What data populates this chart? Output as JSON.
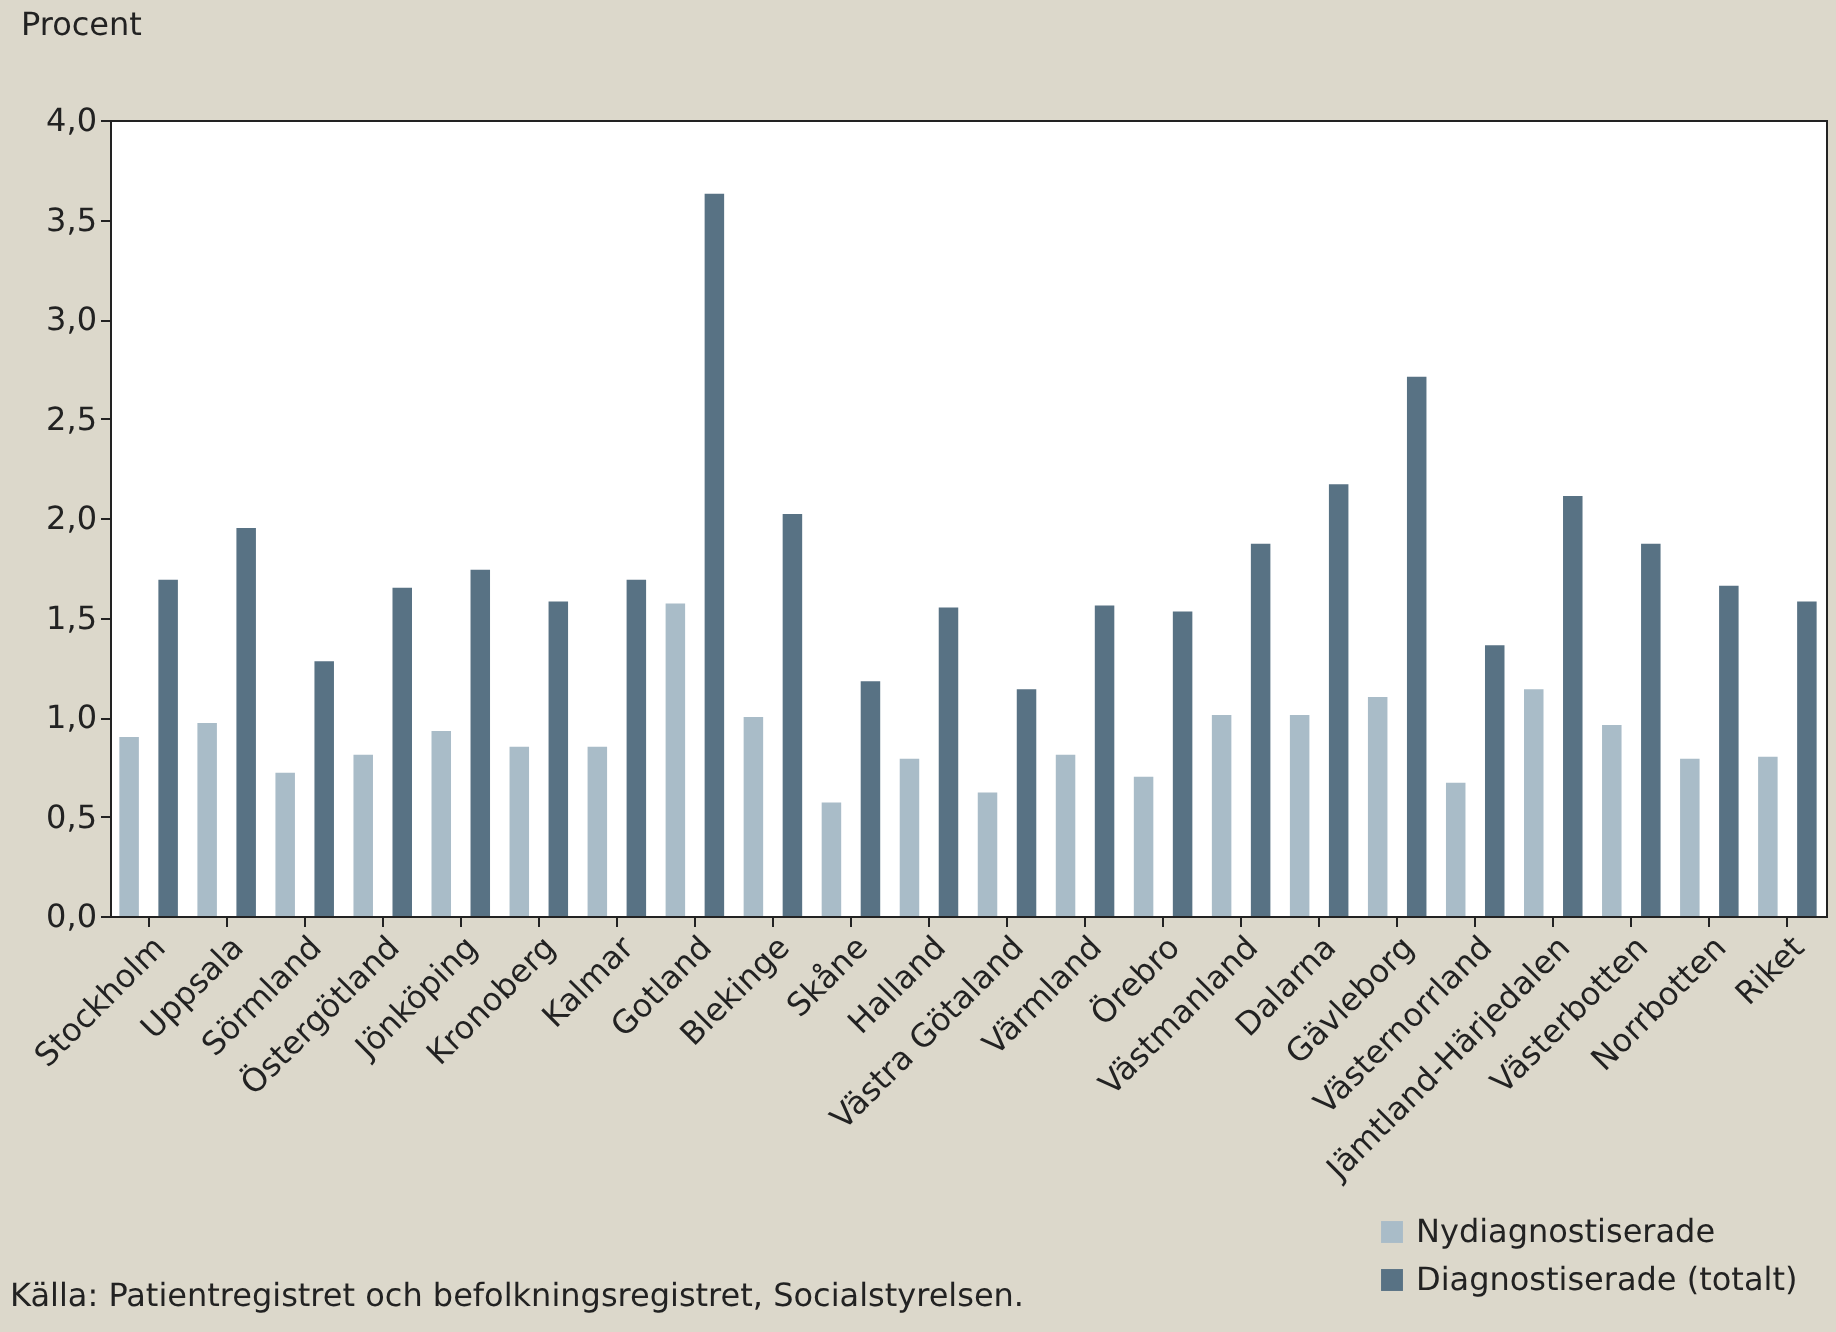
{
  "chart_data": {
    "type": "bar",
    "ylabel": "Procent",
    "categories": [
      "Stockholm",
      "Uppsala",
      "Sörmland",
      "Östergötland",
      "Jönköping",
      "Kronoberg",
      "Kalmar",
      "Gotland",
      "Blekinge",
      "Skåne",
      "Halland",
      "Västra Götaland",
      "Värmland",
      "Örebro",
      "Västmanland",
      "Dalarna",
      "Gävleborg",
      "Västernorrland",
      "Jämtland-Härjedalen",
      "Västerbotten",
      "Norrbotten",
      "Riket"
    ],
    "series": [
      {
        "name": "Nydiagnostiserade",
        "color": "#a9bcc8",
        "values": [
          0.9,
          0.97,
          0.72,
          0.81,
          0.93,
          0.85,
          0.85,
          1.57,
          1.0,
          0.57,
          0.79,
          0.62,
          0.81,
          0.7,
          1.01,
          1.01,
          1.1,
          0.67,
          1.14,
          0.96,
          0.79,
          0.8
        ]
      },
      {
        "name": "Diagnostiserade (totalt)",
        "color": "#587284",
        "values": [
          1.69,
          1.95,
          1.28,
          1.65,
          1.74,
          1.58,
          1.69,
          3.63,
          2.02,
          1.18,
          1.55,
          1.14,
          1.56,
          1.53,
          1.87,
          2.17,
          2.71,
          1.36,
          2.11,
          1.87,
          1.66,
          1.58
        ]
      }
    ],
    "ylim": [
      0,
      4
    ],
    "yticks": [
      {
        "value": 0,
        "label": "0,0"
      },
      {
        "value": 0.5,
        "label": "0,5"
      },
      {
        "value": 1,
        "label": "1,0"
      },
      {
        "value": 1.5,
        "label": "1,5"
      },
      {
        "value": 2,
        "label": "2,0"
      },
      {
        "value": 2.5,
        "label": "2,5"
      },
      {
        "value": 3,
        "label": "3,0"
      },
      {
        "value": 3.5,
        "label": "3,5"
      },
      {
        "value": 4,
        "label": "4,0"
      }
    ],
    "grid": false,
    "legend": "bottom right",
    "annotations": [
      "Källa: Patientregistret och befolkningsregistret, Socialstyrelsen."
    ]
  }
}
